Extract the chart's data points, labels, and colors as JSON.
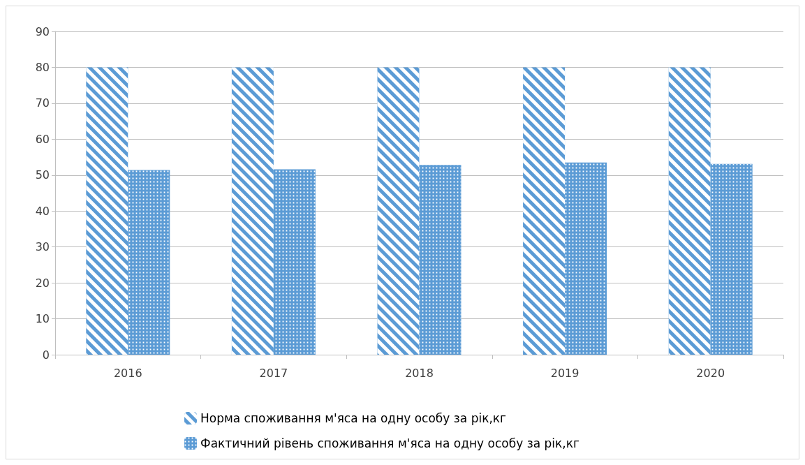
{
  "chart_data": {
    "type": "bar",
    "categories": [
      "2016",
      "2017",
      "2018",
      "2019",
      "2020"
    ],
    "series": [
      {
        "name": "Норма споживання м'яса на одну особу за рік,кг",
        "color": "#5b9bd5",
        "values": [
          80,
          80,
          80,
          80,
          80
        ]
      },
      {
        "name": "Фактичний рівень споживання м'яса на одну особу за рік,кг",
        "color": "#5b9bd5",
        "values": [
          51.4,
          51.6,
          52.8,
          53.5,
          53.1
        ]
      }
    ],
    "ylim": [
      0,
      90
    ],
    "yticks": [
      0,
      10,
      20,
      30,
      40,
      50,
      60,
      70,
      80,
      90
    ],
    "grid": "y",
    "legend": "bottom"
  }
}
